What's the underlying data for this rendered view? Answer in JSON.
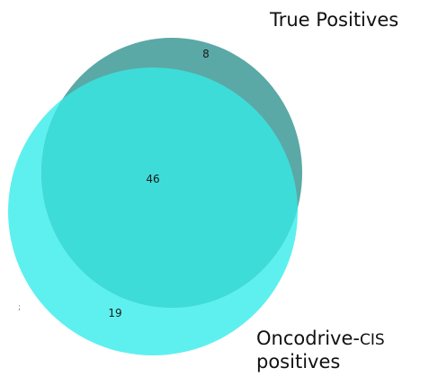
{
  "venn": {
    "sets": [
      {
        "label": "True Positives",
        "color": "#5aa9a6"
      },
      {
        "label_main": "Oncodrive-",
        "label_small": "CIS",
        "label_line2": "positives",
        "color": "#5ef0ef"
      }
    ],
    "overlap_color": "#3edcd8",
    "regions": {
      "only_true_positives": "8",
      "intersection": "46",
      "only_oncodrive": "19"
    }
  }
}
